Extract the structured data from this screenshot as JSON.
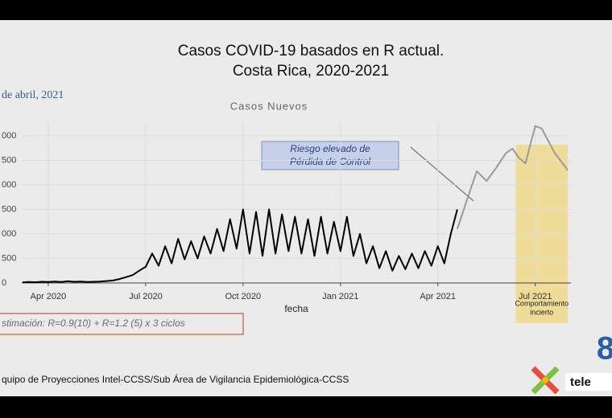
{
  "chart_data": {
    "type": "line",
    "title": [
      "Casos  COVID-19 basados en R actual.",
      "Costa Rica, 2020-2021"
    ],
    "date_label": "de abril, 2021",
    "subtitle": "Casos Nuevos",
    "xlabel": "fecha",
    "annotation": [
      "Riesgo elevado de",
      "Pérdida de Control"
    ],
    "shaded_region": {
      "x": [
        17.4,
        19.0
      ],
      "label": [
        "Comportamiento",
        "incierto"
      ]
    },
    "xlim": [
      2.2,
      19.1
    ],
    "xticks": [
      {
        "value": 3,
        "label": "Apr 2020"
      },
      {
        "value": 6,
        "label": "Jul 2020"
      },
      {
        "value": 9,
        "label": "Oct 2020"
      },
      {
        "value": 12,
        "label": "Jan 2021"
      },
      {
        "value": 15,
        "label": "Apr 2021"
      },
      {
        "value": 18,
        "label": "Jul 2021"
      }
    ],
    "ylim": [
      0,
      3300
    ],
    "yticks": [
      0,
      500,
      {
        "value": 1000,
        "label": "000"
      },
      {
        "value": 1500,
        "label": "500"
      },
      {
        "value": 2000,
        "label": "000"
      },
      {
        "value": 2500,
        "label": "500"
      },
      {
        "value": 3000,
        "label": "000"
      }
    ],
    "grid": true,
    "series": [
      {
        "color": "#000000",
        "x": [
          2.2,
          2.4,
          2.6,
          2.8,
          3.0,
          3.2,
          3.4,
          3.6,
          3.8,
          4.0,
          4.2,
          4.4,
          4.6,
          4.8,
          5.0,
          5.2,
          5.4,
          5.6,
          5.8,
          6.0,
          6.2,
          6.4,
          6.6,
          6.8,
          7.0,
          7.2,
          7.4,
          7.6,
          7.8,
          8.0,
          8.2,
          8.4,
          8.6,
          8.8,
          9.0,
          9.2,
          9.4,
          9.6,
          9.8,
          10.0,
          10.2,
          10.4,
          10.6,
          10.8,
          11.0,
          11.2,
          11.4,
          11.6,
          11.8,
          12.0,
          12.2,
          12.4,
          12.6,
          12.8,
          13.0,
          13.2,
          13.4,
          13.6,
          13.8,
          14.0,
          14.2,
          14.4,
          14.6,
          14.8,
          15.0,
          15.2,
          15.4,
          15.6
        ],
        "values": [
          10,
          20,
          15,
          25,
          20,
          30,
          20,
          35,
          25,
          30,
          20,
          25,
          30,
          40,
          50,
          80,
          120,
          160,
          250,
          330,
          600,
          350,
          750,
          400,
          900,
          480,
          850,
          500,
          950,
          600,
          1100,
          650,
          1300,
          700,
          1500,
          600,
          1450,
          550,
          1500,
          600,
          1400,
          650,
          1350,
          600,
          1300,
          550,
          1350,
          600,
          1250,
          650,
          1350,
          550,
          1000,
          400,
          750,
          300,
          650,
          250,
          550,
          280,
          600,
          300,
          650,
          350,
          750,
          400,
          1000,
          1500
        ]
      },
      {
        "color": "#9a9a9a",
        "x": [
          15.6,
          15.9,
          16.2,
          16.5,
          16.8,
          17.1,
          17.3,
          17.5,
          17.7,
          17.9,
          18.0,
          18.2,
          18.4,
          18.6,
          18.8,
          19.0
        ],
        "values": [
          1100,
          1700,
          2280,
          2080,
          2350,
          2650,
          2740,
          2550,
          2440,
          2950,
          3200,
          3150,
          2900,
          2650,
          2480,
          2300
        ]
      }
    ]
  },
  "estimation": "stimación: R=0.9(10) + R=1.2 (5) x 3 ciclos",
  "footer": "quipo de Proyecciones Intel-CCSS/Sub Área de Vigilancia Epidemiológica-CCSS",
  "logo": {
    "number": "8",
    "text": "tele"
  }
}
